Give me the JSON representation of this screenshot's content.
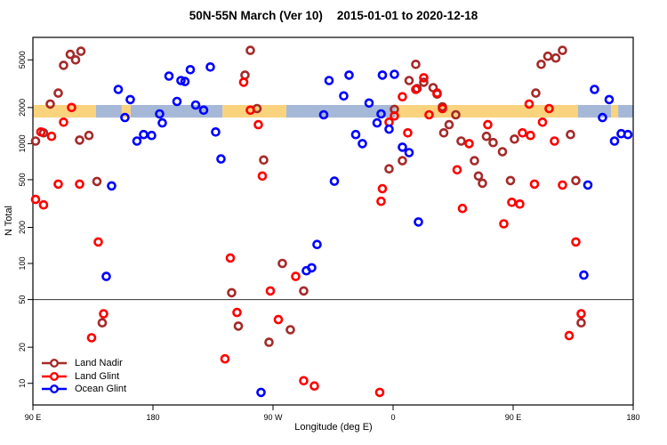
{
  "title_main": "50N-55N March (Ver 10)",
  "title_dates": "2015-01-01 to 2020-12-18",
  "colors": {
    "land_nadir": "#A52A2A",
    "land_glint": "#FF0000",
    "ocean_glint": "#0000FF",
    "band_land": "#FAD37E",
    "band_ocean": "#A5B8D8",
    "axis": "#000000",
    "reference_line": "#333333"
  },
  "chart_data": {
    "type": "scatter",
    "title": "50N-55N March (Ver 10)   2015-01-01 to 2020-12-18",
    "xlabel": "Longitude (deg E)",
    "ylabel": "N Total",
    "y_scale": "log",
    "ylim": [
      6.6,
      7700
    ],
    "y_ticks": [
      10,
      20,
      50,
      100,
      200,
      500,
      1000,
      2000,
      5000
    ],
    "x_axis_wrapped_degrees": [
      90,
      540
    ],
    "x_ticks": [
      {
        "deg": 90,
        "label": "90 E"
      },
      {
        "deg": 180,
        "label": "180"
      },
      {
        "deg": 270,
        "label": "90 W"
      },
      {
        "deg": 360,
        "label": "0"
      },
      {
        "deg": 450,
        "label": "90 E"
      },
      {
        "deg": 540,
        "label": "180"
      }
    ],
    "grid": false,
    "reference_line_y": 50,
    "surface_band": {
      "y_range": [
        1650,
        2100
      ],
      "segments": [
        {
          "from_frac": 0.0,
          "to_frac": 0.105,
          "surface": "land"
        },
        {
          "from_frac": 0.105,
          "to_frac": 0.148,
          "surface": "ocean"
        },
        {
          "from_frac": 0.148,
          "to_frac": 0.163,
          "surface": "land"
        },
        {
          "from_frac": 0.163,
          "to_frac": 0.316,
          "surface": "ocean"
        },
        {
          "from_frac": 0.316,
          "to_frac": 0.422,
          "surface": "land"
        },
        {
          "from_frac": 0.422,
          "to_frac": 0.604,
          "surface": "ocean"
        },
        {
          "from_frac": 0.604,
          "to_frac": 0.908,
          "surface": "land"
        },
        {
          "from_frac": 0.908,
          "to_frac": 0.963,
          "surface": "ocean"
        },
        {
          "from_frac": 0.963,
          "to_frac": 0.975,
          "surface": "land"
        },
        {
          "from_frac": 0.975,
          "to_frac": 1.0,
          "surface": "ocean"
        }
      ]
    },
    "legend": {
      "position": "bottom-left",
      "entries": [
        "Land Nadir",
        "Land Glint",
        "Ocean Glint"
      ]
    },
    "series": [
      {
        "name": "Land Nadir",
        "color": "#A52A2A",
        "points": [
          [
            126,
            5900
          ],
          [
            118,
            5550
          ],
          [
            122,
            5000
          ],
          [
            113,
            4500
          ],
          [
            109,
            2640
          ],
          [
            103,
            2140
          ],
          [
            98,
            1230
          ],
          [
            92,
            1050
          ],
          [
            132,
            1170
          ],
          [
            125,
            1070
          ],
          [
            138,
            483
          ],
          [
            142,
            32
          ],
          [
            253,
            6000
          ],
          [
            249,
            3730
          ],
          [
            258,
            1960
          ],
          [
            263,
            730
          ],
          [
            277,
            100
          ],
          [
            239,
            57
          ],
          [
            293,
            59
          ],
          [
            244,
            30
          ],
          [
            283,
            28
          ],
          [
            267,
            22
          ],
          [
            377,
            4590
          ],
          [
            372,
            3360
          ],
          [
            383,
            3250
          ],
          [
            390,
            2930
          ],
          [
            378,
            2880
          ],
          [
            393,
            2590
          ],
          [
            397,
            2030
          ],
          [
            361,
            1930
          ],
          [
            407,
            1740
          ],
          [
            402,
            1440
          ],
          [
            398,
            1230
          ],
          [
            411,
            1050
          ],
          [
            367,
            720
          ],
          [
            357,
            616
          ],
          [
            421,
            720
          ],
          [
            424,
            536
          ],
          [
            427,
            467
          ],
          [
            487,
            6000
          ],
          [
            482,
            5180
          ],
          [
            476,
            5360
          ],
          [
            471,
            4590
          ],
          [
            467,
            2640
          ],
          [
            451,
            1090
          ],
          [
            430,
            1150
          ],
          [
            435,
            1020
          ],
          [
            442,
            856
          ],
          [
            493,
            1190
          ],
          [
            448,
            492
          ],
          [
            497,
            492
          ],
          [
            501,
            32
          ]
        ]
      },
      {
        "name": "Land Glint",
        "color": "#FF0000",
        "points": [
          [
            119,
            2000
          ],
          [
            113,
            1510
          ],
          [
            96,
            1250
          ],
          [
            104,
            1150
          ],
          [
            125,
            459
          ],
          [
            109,
            459
          ],
          [
            92,
            342
          ],
          [
            98,
            308
          ],
          [
            139,
            151
          ],
          [
            143,
            38
          ],
          [
            134,
            24
          ],
          [
            248,
            3250
          ],
          [
            253,
            1900
          ],
          [
            259,
            1440
          ],
          [
            262,
            536
          ],
          [
            238,
            111
          ],
          [
            287,
            78
          ],
          [
            268,
            59
          ],
          [
            243,
            39
          ],
          [
            274,
            34
          ],
          [
            234,
            16
          ],
          [
            293,
            10.5
          ],
          [
            301,
            9.5
          ],
          [
            383,
            3540
          ],
          [
            377,
            2830
          ],
          [
            393,
            2640
          ],
          [
            367,
            2460
          ],
          [
            397,
            1960
          ],
          [
            387,
            1740
          ],
          [
            361,
            1700
          ],
          [
            357,
            1510
          ],
          [
            371,
            1230
          ],
          [
            417,
            1000
          ],
          [
            408,
            605
          ],
          [
            352,
            421
          ],
          [
            351,
            330
          ],
          [
            412,
            288
          ],
          [
            350,
            8.4
          ],
          [
            431,
            1440
          ],
          [
            462,
            2140
          ],
          [
            477,
            1960
          ],
          [
            472,
            1510
          ],
          [
            457,
            1230
          ],
          [
            463,
            1170
          ],
          [
            481,
            1050
          ],
          [
            466,
            459
          ],
          [
            487,
            451
          ],
          [
            449,
            324
          ],
          [
            455,
            313
          ],
          [
            443,
            214
          ],
          [
            497,
            151
          ],
          [
            501,
            38
          ],
          [
            492,
            25
          ]
        ]
      },
      {
        "name": "Ocean Glint",
        "color": "#0000FF",
        "points": [
          [
            154,
            2830
          ],
          [
            163,
            2330
          ],
          [
            159,
            1650
          ],
          [
            192,
            3660
          ],
          [
            201,
            3360
          ],
          [
            198,
            2250
          ],
          [
            185,
            1770
          ],
          [
            187,
            1490
          ],
          [
            173,
            1190
          ],
          [
            179,
            1170
          ],
          [
            168,
            1050
          ],
          [
            149,
            444
          ],
          [
            145,
            78
          ],
          [
            208,
            4140
          ],
          [
            223,
            4360
          ],
          [
            204,
            3300
          ],
          [
            212,
            2100
          ],
          [
            218,
            1900
          ],
          [
            227,
            1250
          ],
          [
            231,
            745
          ],
          [
            312,
            3360
          ],
          [
            308,
            1740
          ],
          [
            316,
            486
          ],
          [
            327,
            3730
          ],
          [
            352,
            3730
          ],
          [
            361,
            3790
          ],
          [
            323,
            2500
          ],
          [
            342,
            2180
          ],
          [
            351,
            1770
          ],
          [
            348,
            1490
          ],
          [
            357,
            1320
          ],
          [
            332,
            1190
          ],
          [
            337,
            1000
          ],
          [
            367,
            933
          ],
          [
            372,
            841
          ],
          [
            379,
            222
          ],
          [
            303,
            144
          ],
          [
            299,
            92
          ],
          [
            295,
            87
          ],
          [
            261,
            8.4
          ],
          [
            511,
            2830
          ],
          [
            522,
            2330
          ],
          [
            517,
            1650
          ],
          [
            526,
            1050
          ],
          [
            531,
            1210
          ],
          [
            536,
            1190
          ],
          [
            506,
            451
          ],
          [
            503,
            80
          ]
        ]
      }
    ]
  }
}
